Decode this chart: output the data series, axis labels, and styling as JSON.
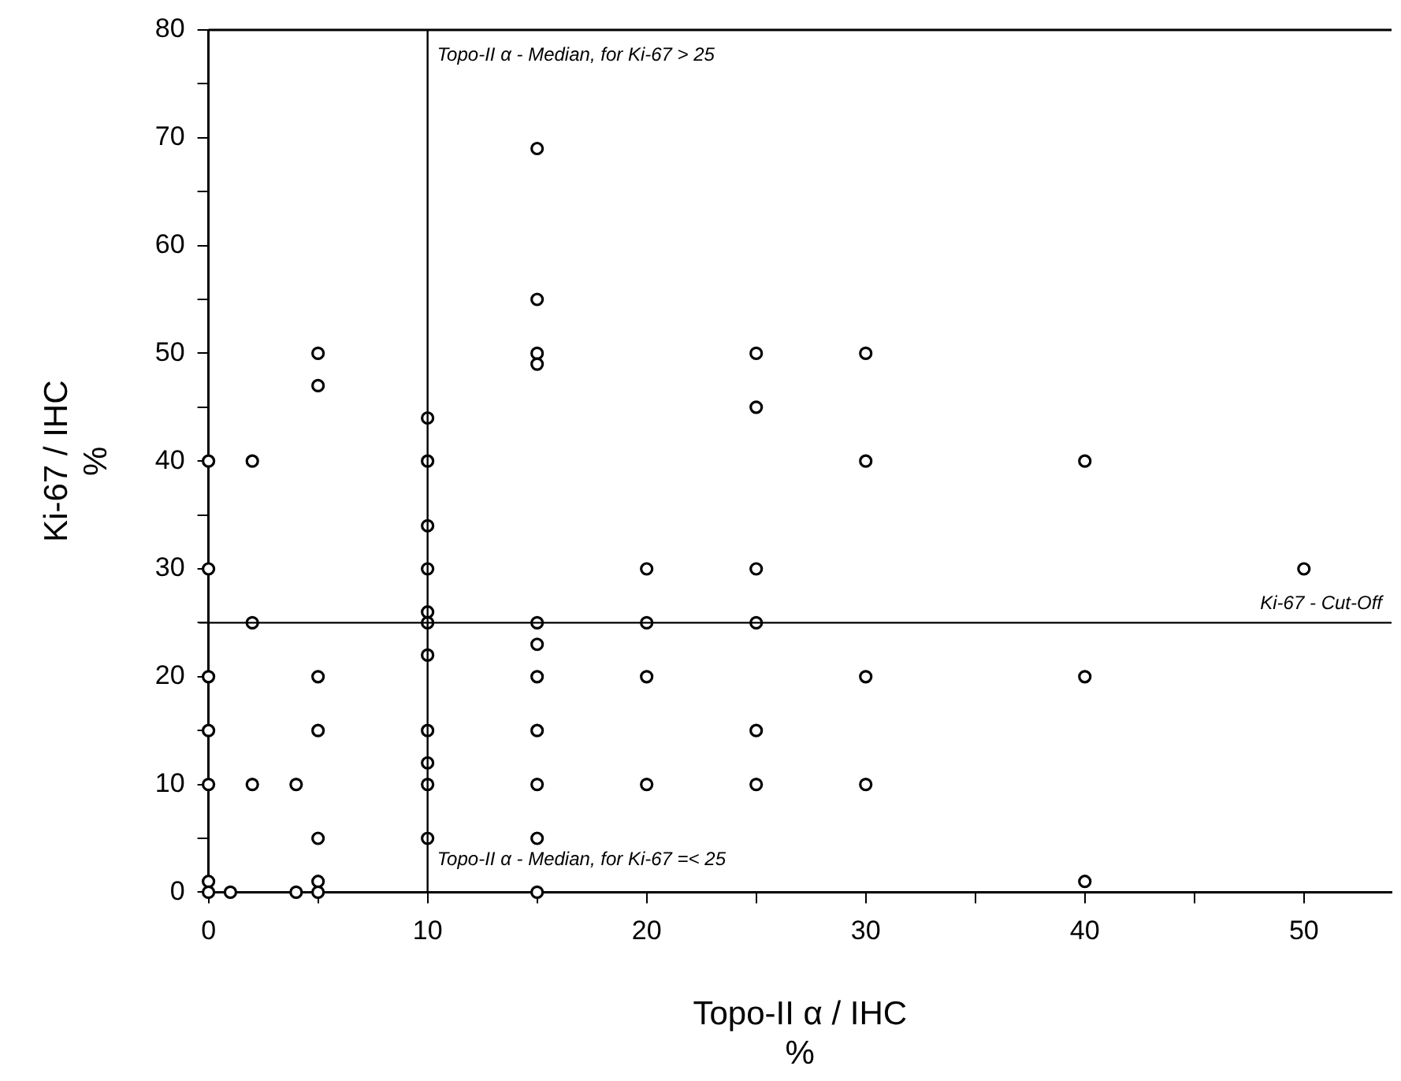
{
  "chart_data": {
    "type": "scatter",
    "xlabel": "Topo-II α / IHC\n%",
    "ylabel": "Ki-67 / IHC\n%",
    "marker": "circle",
    "grid": false,
    "legend": false,
    "xlim": [
      0,
      54
    ],
    "ylim": [
      0,
      80
    ],
    "xticks": [
      0,
      {
        "value": 5,
        "label": null
      },
      10,
      {
        "value": 15,
        "label": null
      },
      20,
      {
        "value": 25,
        "label": null
      },
      30,
      {
        "value": 35,
        "label": null
      },
      40,
      {
        "value": 45,
        "label": null
      },
      50
    ],
    "yticks": [
      0,
      {
        "value": 5,
        "label": null
      },
      10,
      {
        "value": 15,
        "label": null
      },
      20,
      {
        "value": 25,
        "label": null
      },
      30,
      {
        "value": 35,
        "label": null
      },
      40,
      {
        "value": 45,
        "label": null
      },
      50,
      {
        "value": 55,
        "label": null
      },
      60,
      {
        "value": 65,
        "label": null
      },
      70,
      {
        "value": 75,
        "label": null
      },
      80
    ],
    "series": [
      {
        "color": "#000000",
        "x": [
          0,
          0,
          0,
          0,
          0,
          0,
          0,
          1,
          2,
          2,
          2,
          4,
          4,
          5,
          5,
          5,
          5,
          5,
          5,
          5,
          10,
          10,
          10,
          10,
          10,
          10,
          10,
          10,
          10,
          10,
          10,
          15,
          15,
          15,
          15,
          15,
          15,
          15,
          15,
          15,
          15,
          15,
          20,
          20,
          20,
          20,
          25,
          25,
          25,
          25,
          25,
          25,
          30,
          30,
          30,
          30,
          40,
          40,
          40,
          50
        ],
        "values": [
          40,
          30,
          20,
          15,
          10,
          1,
          0,
          0,
          40,
          25,
          10,
          10,
          0,
          50,
          47,
          20,
          15,
          5,
          1,
          0,
          44,
          40,
          34,
          30,
          26,
          25,
          22,
          15,
          12,
          10,
          5,
          69,
          55,
          50,
          49,
          25,
          23,
          20,
          15,
          10,
          5,
          0,
          30,
          25,
          20,
          10,
          50,
          45,
          30,
          25,
          15,
          10,
          50,
          40,
          20,
          10,
          40,
          20,
          1,
          30
        ]
      }
    ],
    "annotations": [
      {
        "text": "Topo-II α - Median, for Ki-67 =< 25",
        "x": 10,
        "y": 3
      }
    ],
    "ref_lines": [
      {
        "axis": "x",
        "value": 10,
        "label": "Topo-II α - Median, for Ki-67 > 25",
        "color": "#000000"
      },
      {
        "axis": "y",
        "value": 25,
        "label": "Ki-67 - Cut-Off",
        "color": "#000000"
      }
    ]
  }
}
